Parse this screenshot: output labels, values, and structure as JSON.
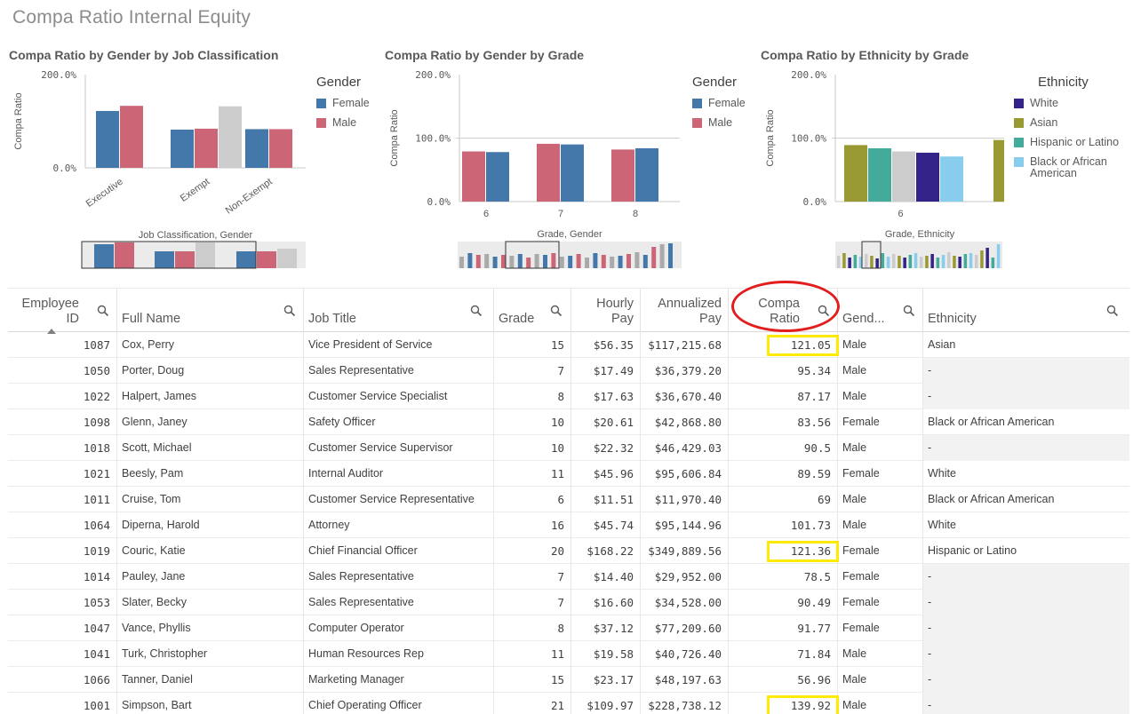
{
  "app": {
    "title": "Compa Ratio Internal Equity"
  },
  "colors": {
    "female": "#4477aa",
    "male": "#cc6677",
    "other": "#cccccc",
    "white": "#332288",
    "asian": "#999933",
    "hispanic": "#44aa99",
    "black": "#88ccee",
    "highlight": "#ffeb00",
    "annotation": "#e31d1d"
  },
  "charts": {
    "job": {
      "title": "Compa Ratio by Gender by Job Classification",
      "ylabel": "Compa Ratio",
      "ticks": [
        "200.0%",
        "0.0%"
      ],
      "xlabel": "Job Classification, Gender",
      "legend_title": "Gender",
      "legend": [
        "Female",
        "Male"
      ]
    },
    "grade": {
      "title": "Compa Ratio by Gender by Grade",
      "ylabel": "Compa Ratio",
      "ticks": [
        "200.0%",
        "100.0%",
        "0.0%"
      ],
      "xlabel": "Grade, Gender",
      "legend_title": "Gender",
      "legend": [
        "Female",
        "Male"
      ]
    },
    "ethnicity": {
      "title": "Compa Ratio by Ethnicity by Grade",
      "ylabel": "Compa Ratio",
      "ticks": [
        "200.0%",
        "100.0%",
        "0.0%"
      ],
      "xlabel": "Grade, Ethnicity",
      "legend_title": "Ethnicity",
      "legend": [
        "White",
        "Asian",
        "Hispanic or Latino",
        "Black or African American"
      ]
    }
  },
  "chart_data": [
    {
      "type": "bar",
      "title": "Compa Ratio by Gender by Job Classification",
      "xlabel": "Job Classification, Gender",
      "ylabel": "Compa Ratio",
      "ylim": [
        0,
        2
      ],
      "categories": [
        "Executive",
        "Exempt",
        "Non-Exempt"
      ],
      "series": [
        {
          "name": "Female",
          "values": [
            1.22,
            0.82,
            0.83
          ]
        },
        {
          "name": "Male",
          "values": [
            1.33,
            0.84,
            0.83
          ]
        },
        {
          "name": "-",
          "values": [
            null,
            1.32,
            null
          ]
        }
      ]
    },
    {
      "type": "bar",
      "title": "Compa Ratio by Gender by Grade",
      "xlabel": "Grade, Gender",
      "ylabel": "Compa Ratio",
      "ylim": [
        0,
        2
      ],
      "categories": [
        "6",
        "7",
        "8"
      ],
      "series": [
        {
          "name": "Male",
          "values": [
            0.79,
            0.91,
            0.82
          ]
        },
        {
          "name": "Female",
          "values": [
            0.78,
            0.9,
            0.84
          ]
        }
      ]
    },
    {
      "type": "bar",
      "title": "Compa Ratio by Ethnicity by Grade",
      "xlabel": "Grade, Ethnicity",
      "ylabel": "Compa Ratio",
      "ylim": [
        0,
        2
      ],
      "categories": [
        "6"
      ],
      "series": [
        {
          "name": "Asian",
          "values": [
            0.89
          ]
        },
        {
          "name": "Hispanic or Latino",
          "values": [
            0.84
          ]
        },
        {
          "name": "-",
          "values": [
            0.79
          ]
        },
        {
          "name": "White",
          "values": [
            0.77
          ]
        },
        {
          "name": "Black or African American",
          "values": [
            0.71
          ]
        }
      ]
    }
  ],
  "table": {
    "headers": [
      "Employee ID",
      "Full Name",
      "Job Title",
      "Grade",
      "Hourly Pay",
      "Annualized Pay",
      "Compa Ratio",
      "Gend...",
      "Ethnicity"
    ],
    "header_lines": {
      "employee_id": [
        "Employee",
        "ID"
      ],
      "full_name": [
        "Full Name"
      ],
      "job_title": [
        "Job Title"
      ],
      "grade": [
        "Grade"
      ],
      "hourly_pay": [
        "Hourly",
        "Pay"
      ],
      "annualized_pay": [
        "Annualized",
        "Pay"
      ],
      "compa_ratio": [
        "Compa",
        "Ratio"
      ],
      "gender": [
        "Gend..."
      ],
      "ethnicity": [
        "Ethnicity"
      ]
    },
    "rows": [
      [
        "1087",
        "Cox, Perry",
        "Vice President of Service",
        "15",
        "$56.35",
        "$117,215.68",
        "121.05",
        "Male",
        "Asian"
      ],
      [
        "1050",
        "Porter, Doug",
        "Sales Representative",
        "7",
        "$17.49",
        "$36,379.20",
        "95.34",
        "Male",
        "-"
      ],
      [
        "1022",
        "Halpert, James",
        "Customer Service Specialist",
        "8",
        "$17.63",
        "$36,670.40",
        "87.17",
        "Male",
        "-"
      ],
      [
        "1098",
        "Glenn, Janey",
        "Safety Officer",
        "10",
        "$20.61",
        "$42,868.80",
        "83.56",
        "Female",
        "Black or African American"
      ],
      [
        "1018",
        "Scott, Michael",
        "Customer Service Supervisor",
        "10",
        "$22.32",
        "$46,429.03",
        "90.5",
        "Male",
        "-"
      ],
      [
        "1021",
        "Beesly, Pam",
        "Internal Auditor",
        "11",
        "$45.96",
        "$95,606.84",
        "89.59",
        "Female",
        "White"
      ],
      [
        "1011",
        "Cruise, Tom",
        "Customer Service Representative",
        "6",
        "$11.51",
        "$11,970.40",
        "69",
        "Male",
        "Black or African American"
      ],
      [
        "1064",
        "Diperna, Harold",
        "Attorney",
        "16",
        "$45.74",
        "$95,144.96",
        "101.73",
        "Male",
        "White"
      ],
      [
        "1019",
        "Couric, Katie",
        "Chief Financial Officer",
        "20",
        "$168.22",
        "$349,889.56",
        "121.36",
        "Female",
        "Hispanic or Latino"
      ],
      [
        "1014",
        "Pauley, Jane",
        "Sales Representative",
        "7",
        "$14.40",
        "$29,952.00",
        "78.5",
        "Female",
        "-"
      ],
      [
        "1053",
        "Slater, Becky",
        "Sales Representative",
        "7",
        "$16.60",
        "$34,528.00",
        "90.49",
        "Female",
        "-"
      ],
      [
        "1047",
        "Vance, Phyllis",
        "Computer Operator",
        "8",
        "$37.12",
        "$77,209.60",
        "91.77",
        "Female",
        "-"
      ],
      [
        "1041",
        "Turk, Christopher",
        "Human Resources Rep",
        "11",
        "$19.58",
        "$40,726.40",
        "71.84",
        "Male",
        "-"
      ],
      [
        "1066",
        "Tanner, Daniel",
        "Marketing Manager",
        "15",
        "$23.17",
        "$48,197.63",
        "56.96",
        "Male",
        "-"
      ],
      [
        "1001",
        "Simpson, Bart",
        "Chief Operating Officer",
        "21",
        "$109.97",
        "$228,738.12",
        "139.92",
        "Male",
        "-"
      ]
    ],
    "highlighted_compa": [
      "121.05",
      "121.36",
      "139.92"
    ]
  }
}
